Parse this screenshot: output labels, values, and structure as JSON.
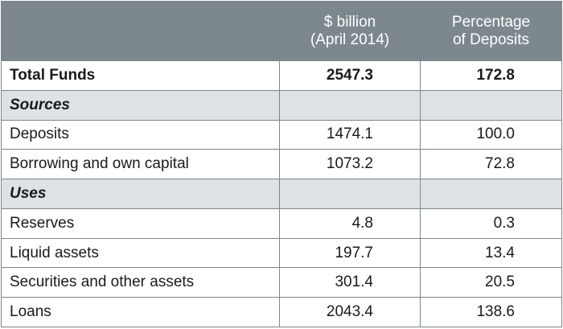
{
  "table": {
    "headers": [
      "",
      "$ billion\n(April 2014)",
      "Percentage\nof Deposits"
    ],
    "header_lines": {
      "col2": [
        "$ billion",
        "(April 2014)"
      ],
      "col3": [
        "Percentage",
        "of Deposits"
      ]
    },
    "rows": [
      {
        "type": "bold",
        "label": "Total Funds",
        "billion": "2547.3",
        "percent": "172.8"
      },
      {
        "type": "section",
        "label": "Sources",
        "billion": "",
        "percent": ""
      },
      {
        "type": "data",
        "label": "Deposits",
        "billion": "1474.1",
        "percent": "100.0"
      },
      {
        "type": "data",
        "label": "Borrowing and own capital",
        "billion": "1073.2",
        "percent": "72.8"
      },
      {
        "type": "section",
        "label": "Uses",
        "billion": "",
        "percent": ""
      },
      {
        "type": "data",
        "label": "Reserves",
        "billion": "4.8",
        "percent": "0.3"
      },
      {
        "type": "data",
        "label": "Liquid assets",
        "billion": "197.7",
        "percent": "13.4"
      },
      {
        "type": "data",
        "label": "Securities and other assets",
        "billion": "301.4",
        "percent": "20.5"
      },
      {
        "type": "data",
        "label": "Loans",
        "billion": "2043.4",
        "percent": "138.6"
      }
    ]
  },
  "colors": {
    "header_bg": "#7d888e",
    "section_bg": "#dde2e4",
    "border": "#7b868c"
  }
}
